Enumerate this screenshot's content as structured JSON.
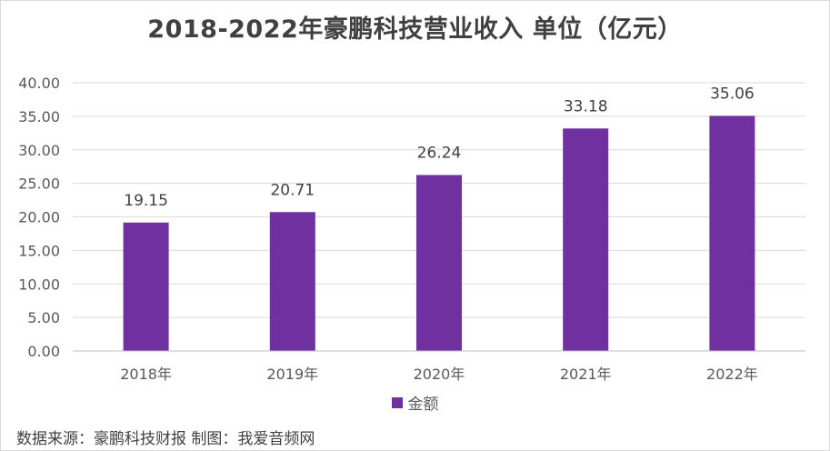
{
  "chart_data": {
    "type": "bar",
    "title": "2018-2022年豪鹏科技营业收入 单位（亿元）",
    "categories": [
      "2018年",
      "2019年",
      "2020年",
      "2021年",
      "2022年"
    ],
    "series": [
      {
        "name": "金额",
        "values": [
          19.15,
          20.71,
          26.24,
          33.18,
          35.06
        ],
        "color": "#7030a0"
      }
    ],
    "data_labels": [
      "19.15",
      "20.71",
      "26.24",
      "33.18",
      "35.06"
    ],
    "y_ticks": [
      "0.00",
      "5.00",
      "10.00",
      "15.00",
      "20.00",
      "25.00",
      "30.00",
      "35.00",
      "40.00"
    ],
    "ylim": [
      0,
      40
    ],
    "grid": true,
    "legend_position": "bottom",
    "xlabel": "",
    "ylabel": ""
  },
  "footer": {
    "source": "数据来源：豪鹏科技财报    制图：我爱音频网"
  }
}
